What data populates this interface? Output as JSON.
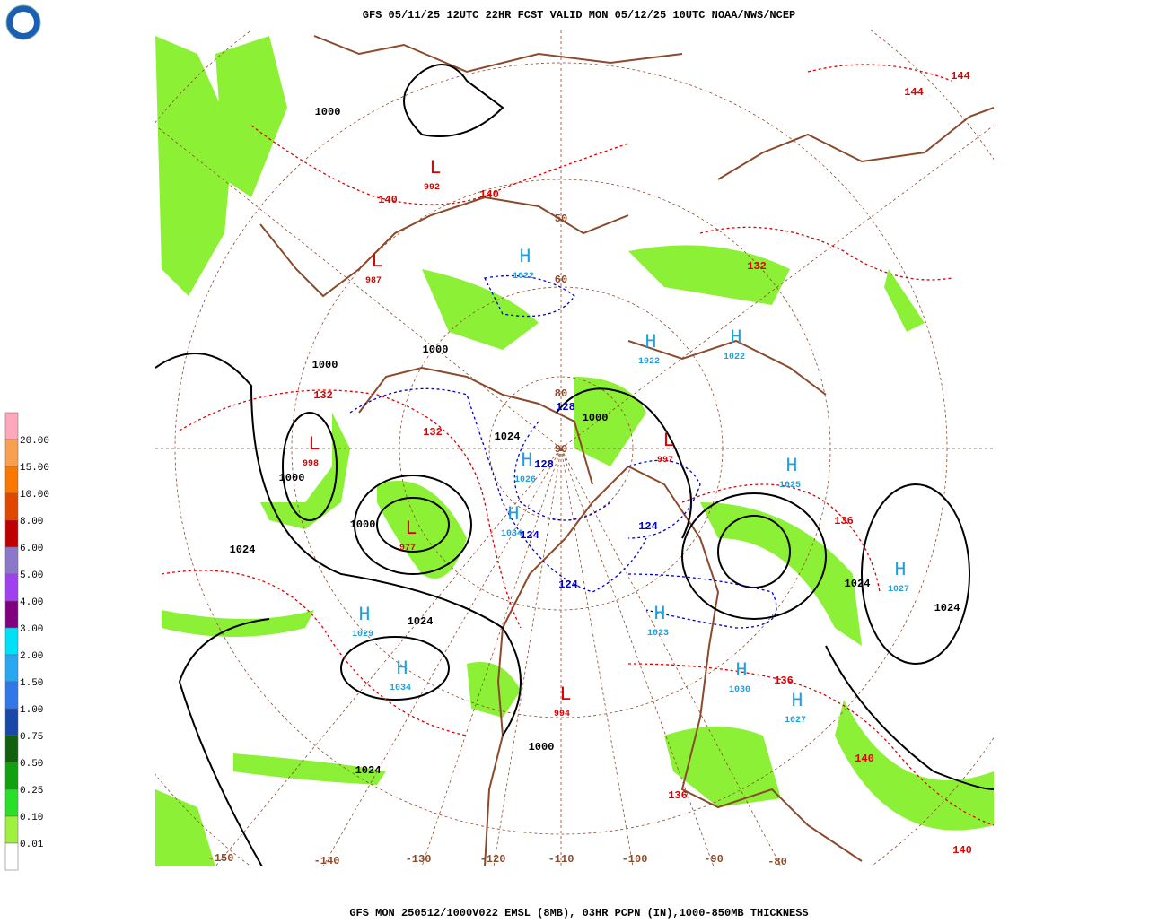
{
  "header": {
    "title": "GFS 05/11/25 12UTC 22HR FCST VALID MON 05/12/25 10UTC NOAA/NWS/NCEP",
    "logo": "NOAA"
  },
  "footer": {
    "caption": "GFS MON 250512/1000V022 EMSL (8MB), 03HR PCPN (IN),1000-850MB THICKNESS"
  },
  "legend": {
    "labels": [
      "20.00",
      "15.00",
      "10.00",
      "8.00",
      "6.00",
      "5.00",
      "4.00",
      "3.00",
      "2.00",
      "1.50",
      "1.00",
      "0.75",
      "0.50",
      "0.25",
      "0.10",
      "0.01"
    ],
    "colors": [
      "#ffa8bc",
      "#f8a050",
      "#f87800",
      "#e04800",
      "#c00000",
      "#8c78c8",
      "#a040f0",
      "#800080",
      "#00e0f8",
      "#28a8f0",
      "#3078e8",
      "#1848a8",
      "#106010",
      "#10a010",
      "#28e028",
      "#a0f040",
      "#ffffff"
    ]
  },
  "map": {
    "highs": [
      {
        "letter": "H",
        "value": "1022"
      },
      {
        "letter": "H",
        "value": "1022"
      },
      {
        "letter": "H",
        "value": "1022"
      },
      {
        "letter": "H",
        "value": "1026"
      },
      {
        "letter": "H",
        "value": "1034"
      },
      {
        "letter": "H",
        "value": "1025"
      },
      {
        "letter": "H",
        "value": "1027"
      },
      {
        "letter": "H",
        "value": "1029"
      },
      {
        "letter": "H",
        "value": "1034"
      },
      {
        "letter": "H",
        "value": "1023"
      },
      {
        "letter": "H",
        "value": "1030"
      },
      {
        "letter": "H",
        "value": "1027"
      }
    ],
    "lows": [
      {
        "letter": "L",
        "value": "998"
      },
      {
        "letter": "L",
        "value": "977"
      },
      {
        "letter": "L",
        "value": "992"
      },
      {
        "letter": "L",
        "value": "994"
      },
      {
        "letter": "L",
        "value": "997"
      },
      {
        "letter": "L",
        "value": "987"
      }
    ],
    "pressure_labels": [
      "1000",
      "1024",
      "1000",
      "1024",
      "1024",
      "1000",
      "1024",
      "1024",
      "1024",
      "1000",
      "1000",
      "1000",
      "1000"
    ],
    "thickness_labels_warm": [
      "132",
      "132",
      "136",
      "136",
      "140",
      "140",
      "144",
      "140",
      "136",
      "132",
      "144",
      "140"
    ],
    "thickness_labels_cold": [
      "128",
      "124",
      "124",
      "128",
      "124"
    ],
    "longitude_labels": [
      "-150",
      "-140",
      "-130",
      "-120",
      "-110",
      "-100",
      "-90",
      "-80"
    ],
    "latitude_labels": [
      "50",
      "60",
      "80",
      "90"
    ]
  }
}
